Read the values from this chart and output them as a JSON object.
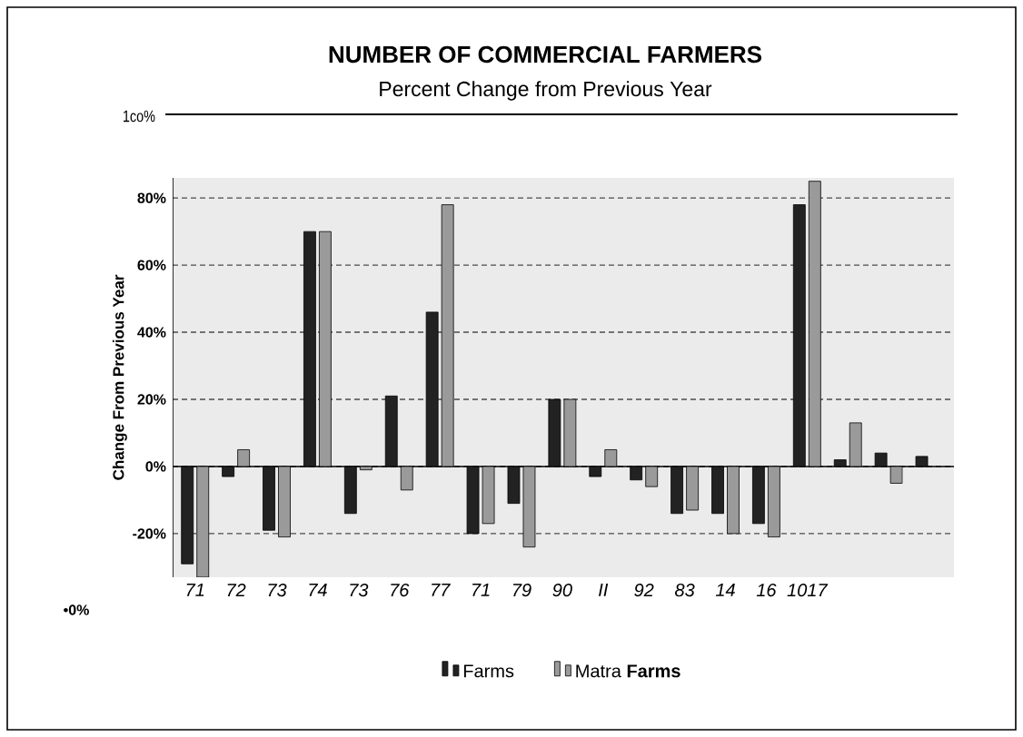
{
  "chart_data": {
    "type": "bar",
    "title": "NUMBER OF COMMERCIAL FARMERS",
    "subtitle": "Percent Change from Previous Year",
    "ylabel": "Change From Previous Year",
    "categories": [
      "71",
      "72",
      "73",
      "74",
      "73",
      "76",
      "77",
      "71",
      "79",
      "90",
      "II",
      "92",
      "83",
      "14",
      "16",
      "1017",
      null,
      null,
      null
    ],
    "series": [
      {
        "name": "Farms",
        "color": "#222222",
        "values": [
          -29,
          -3,
          -19,
          70,
          -14,
          21,
          46,
          -20,
          -11,
          20,
          -3,
          -4,
          -14,
          -14,
          -17,
          78,
          2,
          4,
          3
        ]
      },
      {
        "name": "Matra **Farms**",
        "color": "#9a9a9a",
        "values": [
          -33,
          5,
          -21,
          70,
          -1,
          -7,
          78,
          -17,
          -24,
          20,
          5,
          -6,
          -13,
          -20,
          -21,
          85,
          13,
          -5,
          null
        ]
      }
    ],
    "ylim": [
      -33,
      86
    ],
    "yticks": [
      {
        "value": -20,
        "label": "-20%"
      },
      {
        "value": 0,
        "label": "0%"
      },
      {
        "value": 20,
        "label": "20%"
      },
      {
        "value": 40,
        "label": "40%"
      },
      {
        "value": 60,
        "label": "60%"
      },
      {
        "value": 80,
        "label": "80%"
      }
    ],
    "grid": "y",
    "legend": "bottom",
    "annotations": [
      "1co%",
      "•0%"
    ]
  }
}
